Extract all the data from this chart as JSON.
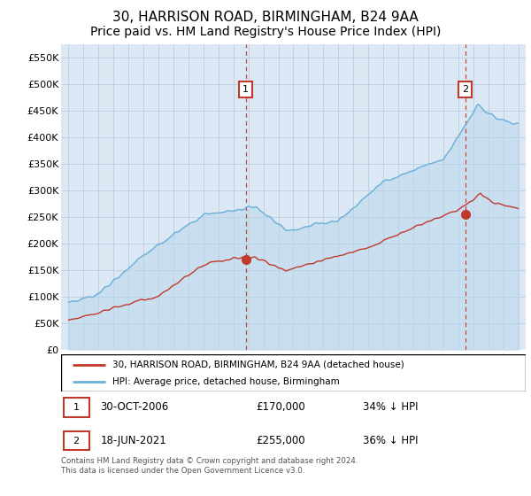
{
  "title": "30, HARRISON ROAD, BIRMINGHAM, B24 9AA",
  "subtitle": "Price paid vs. HM Land Registry's House Price Index (HPI)",
  "title_fontsize": 11,
  "subtitle_fontsize": 10,
  "hpi_color": "#6ab0d8",
  "price_color": "#c0392b",
  "marker1_x": 2006.83,
  "marker1_y": 170000,
  "marker2_x": 2021.46,
  "marker2_y": 255000,
  "ylabel_ticks": [
    0,
    50000,
    100000,
    150000,
    200000,
    250000,
    300000,
    350000,
    400000,
    450000,
    500000,
    550000
  ],
  "ylim": [
    0,
    575000
  ],
  "xlim_start": 1994.5,
  "xlim_end": 2025.5,
  "legend_entry1": "30, HARRISON ROAD, BIRMINGHAM, B24 9AA (detached house)",
  "legend_entry2": "HPI: Average price, detached house, Birmingham",
  "annot1_label": "1",
  "annot2_label": "2",
  "annot1_date": "30-OCT-2006",
  "annot1_price": "£170,000",
  "annot1_hpi": "34% ↓ HPI",
  "annot2_date": "18-JUN-2021",
  "annot2_price": "£255,000",
  "annot2_hpi": "36% ↓ HPI",
  "footer": "Contains HM Land Registry data © Crown copyright and database right 2024.\nThis data is licensed under the Open Government Licence v3.0.",
  "bg_color": "#ffffff",
  "chart_bg": "#dce9f5",
  "grid_color": "#b0c8e0"
}
